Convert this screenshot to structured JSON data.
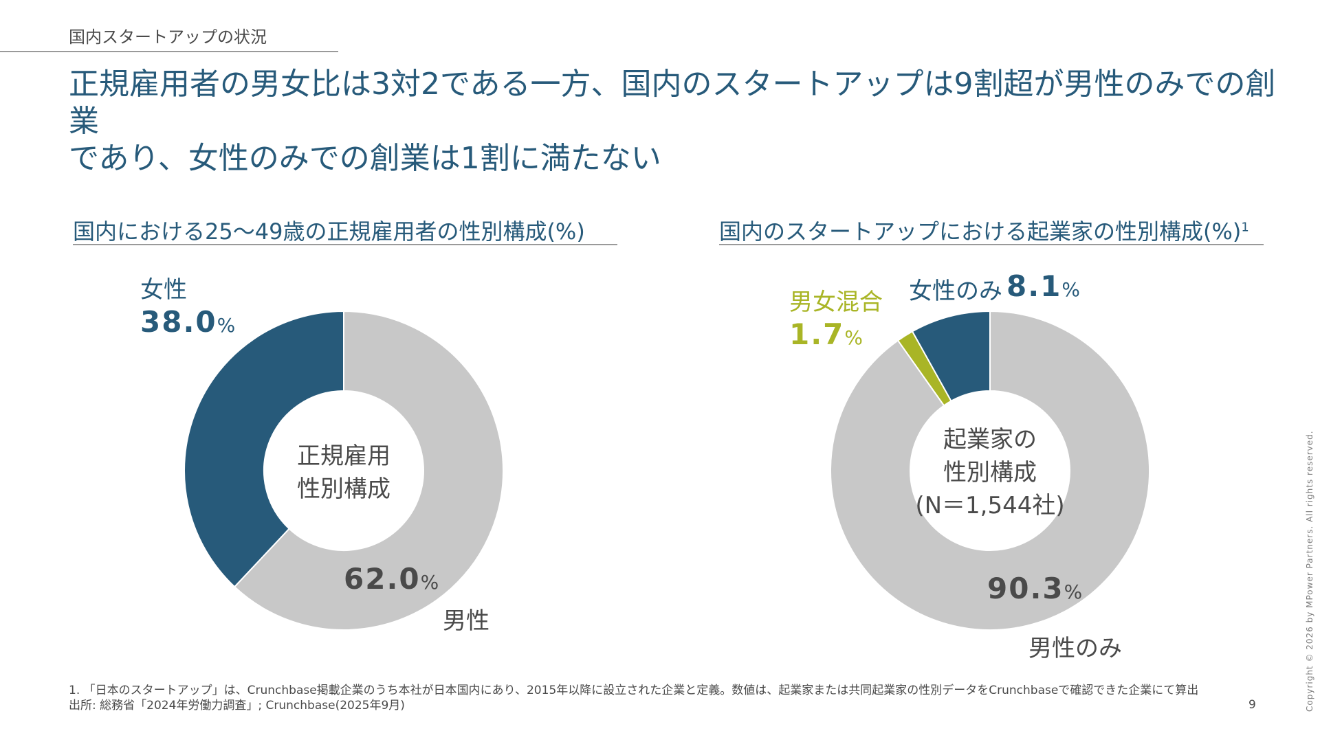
{
  "section_label": "国内スタートアップの状況",
  "headline_line1": "正規雇用者の男女比は3対2である一方、国内のスタートアップは9割超が男性のみでの創業",
  "headline_line2": "であり、女性のみでの創業は1割に満たない",
  "colors": {
    "navy": "#275a7a",
    "gray": "#c8c8c8",
    "olive": "#a9b526",
    "text": "#4a4a4a"
  },
  "chart_data": [
    {
      "type": "pie",
      "title": "国内における25～49歳の正規雇用者の性別構成(%)",
      "center_label": [
        "正規雇用",
        "性別構成"
      ],
      "slices": [
        {
          "name": "男性",
          "value": 62.0,
          "value_label": "62.0",
          "color": "#c8c8c8"
        },
        {
          "name": "女性",
          "value": 38.0,
          "value_label": "38.0",
          "color": "#275a7a"
        }
      ],
      "percent_sign": "%"
    },
    {
      "type": "pie",
      "title": "国内のスタートアップにおける起業家の性別構成(%)",
      "title_note": "1",
      "center_label": [
        "起業家の",
        "性別構成",
        "(N＝1,544社)"
      ],
      "slices": [
        {
          "name": "男性のみ",
          "value": 90.3,
          "value_label": "90.3",
          "color": "#c8c8c8"
        },
        {
          "name": "男女混合",
          "value": 1.7,
          "value_label": "1.7",
          "color": "#a9b526"
        },
        {
          "name": "女性のみ",
          "value": 8.1,
          "value_label": "8.1",
          "color": "#275a7a"
        }
      ],
      "percent_sign": "%"
    }
  ],
  "footnote_line1": "1. 「日本のスタートアップ」は、Crunchbase掲載企業のうち本社が日本国内にあり、2015年以降に設立された企業と定義。数値は、起業家または共同起業家の性別データをCrunchbaseで確認できた企業にて算出",
  "footnote_line2": "出所: 総務省「2024年労働力調査」; Crunchbase(2025年9月)",
  "page_number": "9",
  "copyright": "Copyright © 2026 by MPower Partners. All rights reserved."
}
